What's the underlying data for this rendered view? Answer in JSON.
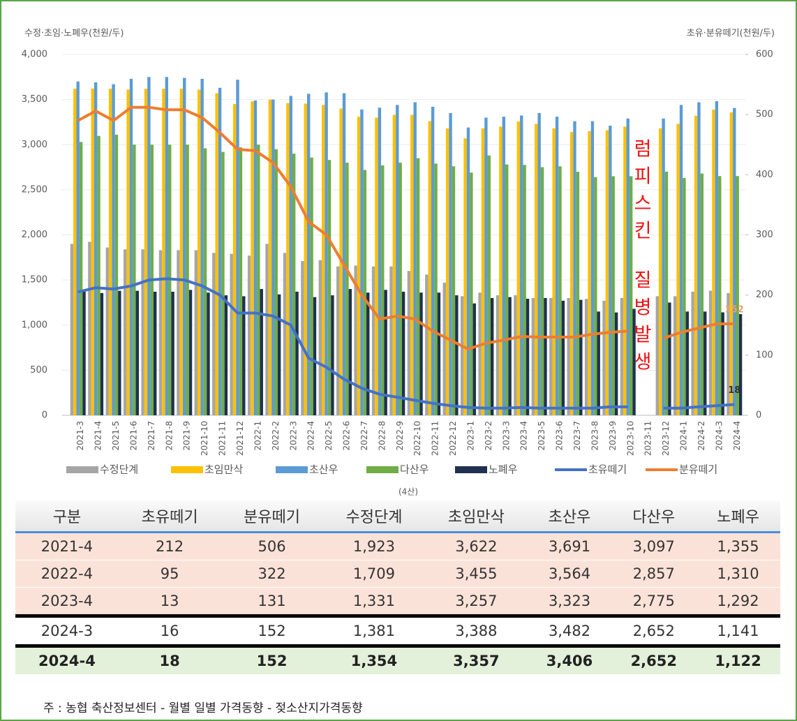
{
  "chart_data": {
    "type": "bar_line",
    "ylabel": "수정·초임·노폐우(천원/두)",
    "y2label": "초유·분유떼기(천원/두)",
    "categories": [
      "2021-3",
      "2021-4",
      "2021-5",
      "2021-6",
      "2021-7",
      "2021-8",
      "2021-9",
      "2021-10",
      "2021-11",
      "2021-12",
      "2022-1",
      "2022-2",
      "2022-3",
      "2022-4",
      "2022-5",
      "2022-6",
      "2022-7",
      "2022-8",
      "2022-9",
      "2022-10",
      "2022-11",
      "2022-12",
      "2023-1",
      "2023-2",
      "2023-3",
      "2023-4",
      "2023-5",
      "2023-6",
      "2023-7",
      "2023-8",
      "2023-9",
      "2023-10",
      "2023-11",
      "2023-12",
      "2024-1",
      "2024-2",
      "2024-3",
      "2024-4"
    ],
    "series": [
      {
        "name": "수정단계",
        "color": "#a6a6a6",
        "kind": "bar",
        "values": [
          1900,
          1923,
          1860,
          1840,
          1840,
          1830,
          1830,
          1830,
          1800,
          1790,
          1770,
          1900,
          1800,
          1709,
          1720,
          1650,
          1660,
          1650,
          1650,
          1600,
          1560,
          1470,
          1320,
          1360,
          1330,
          1331,
          1300,
          1300,
          1300,
          1290,
          1270,
          1300,
          null,
          1320,
          1320,
          1370,
          1381,
          1354
        ]
      },
      {
        "name": "초임만삭",
        "color": "#ffc000",
        "kind": "bar",
        "values": [
          3620,
          3622,
          3620,
          3610,
          3620,
          3620,
          3620,
          3610,
          3570,
          3450,
          3480,
          3500,
          3460,
          3455,
          3440,
          3400,
          3310,
          3300,
          3330,
          3330,
          3260,
          3180,
          3070,
          3180,
          3200,
          3257,
          3230,
          3180,
          3140,
          3150,
          3160,
          3200,
          null,
          3180,
          3230,
          3320,
          3388,
          3357
        ]
      },
      {
        "name": "초산우",
        "color": "#5b9bd5",
        "kind": "bar",
        "values": [
          3700,
          3691,
          3670,
          3730,
          3750,
          3750,
          3740,
          3730,
          3630,
          3720,
          3490,
          3500,
          3540,
          3564,
          3580,
          3570,
          3390,
          3410,
          3440,
          3470,
          3420,
          3350,
          3190,
          3300,
          3310,
          3323,
          3350,
          3310,
          3260,
          3260,
          3210,
          3290,
          null,
          3290,
          3440,
          3470,
          3482,
          3406
        ]
      },
      {
        "name": "다산우",
        "color": "#70ad47",
        "kind": "bar",
        "values": [
          3030,
          3097,
          3110,
          3000,
          3000,
          3000,
          3000,
          2960,
          2920,
          2970,
          3000,
          2950,
          2900,
          2857,
          2830,
          2800,
          2720,
          2770,
          2800,
          2850,
          2790,
          2760,
          2690,
          2880,
          2780,
          2775,
          2750,
          2760,
          2700,
          2640,
          2650,
          2650,
          null,
          2700,
          2630,
          2680,
          2652,
          2652
        ]
      },
      {
        "name": "노폐우",
        "color": "#1f3050",
        "kind": "bar",
        "values": [
          1380,
          1355,
          1380,
          1380,
          1370,
          1370,
          1390,
          1360,
          1330,
          1320,
          1400,
          1340,
          1370,
          1310,
          1330,
          1400,
          1360,
          1390,
          1370,
          1360,
          1360,
          1330,
          1240,
          1300,
          1310,
          1292,
          1300,
          1270,
          1280,
          1150,
          1140,
          1180,
          null,
          1250,
          1150,
          1150,
          1141,
          1122
        ]
      },
      {
        "name": "초유떼기",
        "color": "#4472c4",
        "kind": "line",
        "axis": "y2",
        "values": [
          205,
          212,
          210,
          215,
          225,
          227,
          225,
          215,
          200,
          170,
          170,
          165,
          150,
          95,
          80,
          60,
          45,
          35,
          30,
          25,
          20,
          16,
          13,
          12,
          12,
          13,
          12,
          12,
          12,
          12,
          14,
          14,
          null,
          12,
          12,
          14,
          16,
          18
        ]
      },
      {
        "name": "분유떼기",
        "color": "#ed7d31",
        "kind": "line",
        "axis": "y2",
        "values": [
          490,
          506,
          490,
          512,
          512,
          508,
          508,
          495,
          470,
          442,
          440,
          420,
          380,
          322,
          300,
          250,
          200,
          160,
          165,
          160,
          140,
          125,
          110,
          120,
          125,
          131,
          130,
          130,
          130,
          135,
          138,
          140,
          null,
          128,
          138,
          145,
          152,
          152
        ]
      }
    ],
    "ylim": [
      0,
      4000
    ],
    "yticks": [
      0,
      500,
      {
        "value": 1000,
        "label": "1,000"
      },
      {
        "value": 1500,
        "label": "1,500"
      },
      {
        "value": 2000,
        "label": "2,000"
      },
      {
        "value": 2500,
        "label": "2,500"
      },
      {
        "value": 3000,
        "label": "3,000"
      },
      {
        "value": 3500,
        "label": "3,500"
      },
      {
        "value": 4000,
        "label": "4,000"
      }
    ],
    "y2lim": [
      0,
      600
    ],
    "y2ticks": [
      0,
      100,
      200,
      300,
      400,
      500,
      600
    ],
    "grid": true,
    "annotations": [
      "럼피스킨",
      "질병발생"
    ],
    "legend_note": "(4산)"
  },
  "table": {
    "headers": [
      "구분",
      "초유떼기",
      "분유떼기",
      "수정단계",
      "초임만삭",
      "초산우",
      "다산우",
      "노폐우"
    ],
    "rows": [
      [
        "2021-4",
        "212",
        "506",
        "1,923",
        "3,622",
        "3,691",
        "3,097",
        "1,355"
      ],
      [
        "2022-4",
        "95",
        "322",
        "1,709",
        "3,455",
        "3,564",
        "2,857",
        "1,310"
      ],
      [
        "2023-4",
        "13",
        "131",
        "1,331",
        "3,257",
        "3,323",
        "2,775",
        "1,292"
      ],
      [
        "2024-3",
        "16",
        "152",
        "1,381",
        "3,388",
        "3,482",
        "2,652",
        "1,141"
      ],
      [
        "2024-4",
        "18",
        "152",
        "1,354",
        "3,357",
        "3,406",
        "2,652",
        "1,122"
      ]
    ]
  },
  "note": "주 : 농협 축산정보센터 - 월별 일별 가격동향 - 젖소산지가격동향"
}
